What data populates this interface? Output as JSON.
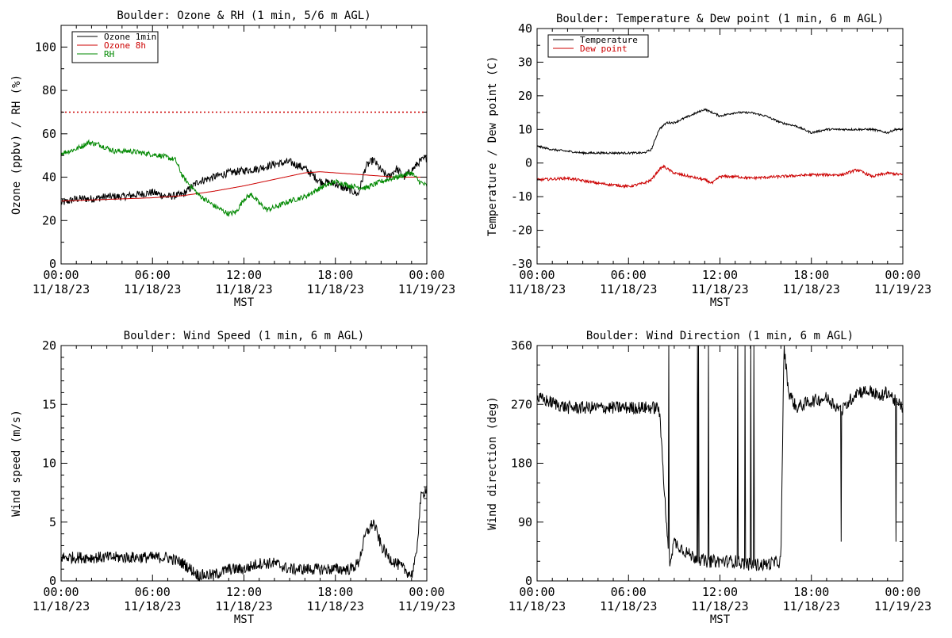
{
  "x_axis": {
    "times": [
      "00:00",
      "06:00",
      "12:00",
      "18:00",
      "00:00"
    ],
    "dates": [
      "11/18/23",
      "11/18/23",
      "11/18/23",
      "11/18/23",
      "11/19/23"
    ],
    "label": "MST",
    "range_hours": [
      0,
      24
    ]
  },
  "chart_data": [
    {
      "id": "ozone_rh",
      "type": "line",
      "title": "Boulder: Ozone & RH (1 min, 5/6 m AGL)",
      "ylabel": "Ozone (ppbv) / RH (%)",
      "ylim": [
        0,
        110
      ],
      "yticks": [
        0,
        20,
        40,
        60,
        80,
        100
      ],
      "legend": "top-left",
      "reference_line": {
        "y": 70,
        "color": "#cc0000",
        "style": "dotted"
      },
      "series": [
        {
          "name": "Ozone 1min",
          "color": "#000000",
          "noise": 1.8,
          "x": [
            0,
            1,
            2,
            3,
            4,
            5,
            6,
            7,
            8,
            9,
            10,
            11,
            12,
            13,
            14,
            15,
            16,
            17,
            18,
            18.5,
            19,
            19.5,
            20,
            20.5,
            21,
            21.5,
            22,
            22.5,
            23,
            23.5,
            24
          ],
          "y": [
            28,
            30,
            30,
            31,
            31,
            32,
            33,
            31,
            32,
            38,
            40,
            42,
            43,
            44,
            46,
            47,
            44,
            38,
            37,
            35,
            34,
            32,
            45,
            48,
            43,
            40,
            44,
            40,
            43,
            47,
            49
          ]
        },
        {
          "name": "Ozone 8h",
          "color": "#cc0000",
          "noise": 0,
          "x": [
            0,
            2,
            4,
            6,
            8,
            10,
            12,
            14,
            16,
            17,
            18,
            20,
            22,
            24
          ],
          "y": [
            29,
            29.5,
            30,
            30.5,
            31.5,
            33.5,
            36,
            39,
            42,
            42.5,
            42,
            41,
            40,
            40
          ]
        },
        {
          "name": "RH",
          "color": "#008800",
          "noise": 1.2,
          "x": [
            0,
            1,
            1.8,
            2.5,
            3.5,
            4.5,
            5.5,
            6.5,
            7.5,
            8,
            9,
            10,
            11,
            11.5,
            12,
            12.5,
            13,
            13.5,
            14,
            15,
            16,
            17,
            18,
            19,
            20,
            21,
            22,
            23,
            23.5,
            24
          ],
          "y": [
            51,
            53,
            56,
            55,
            52,
            52,
            51,
            50,
            48,
            40,
            32,
            27,
            23,
            24,
            30,
            32,
            28,
            25,
            26,
            29,
            31,
            35,
            38,
            36,
            35,
            38,
            40,
            42,
            38,
            36
          ]
        }
      ]
    },
    {
      "id": "temp_dew",
      "type": "line",
      "title": "Boulder: Temperature & Dew point (1 min, 6 m AGL)",
      "ylabel": "Temperature / Dew point (C)",
      "ylim": [
        -30,
        40
      ],
      "yticks": [
        -30,
        -20,
        -10,
        0,
        10,
        20,
        30,
        40
      ],
      "legend": "top-left",
      "series": [
        {
          "name": "Temperature",
          "color": "#000000",
          "noise": 0.3,
          "x": [
            0,
            1,
            2,
            3,
            4,
            5,
            6,
            7,
            7.5,
            8,
            8.5,
            9,
            10,
            11,
            12,
            13,
            14,
            15,
            16,
            17,
            18,
            19,
            20,
            21,
            22,
            23,
            23.5,
            24
          ],
          "y": [
            5,
            4,
            3.5,
            3,
            3,
            3,
            3,
            3,
            4,
            10,
            12,
            12,
            14,
            16,
            14,
            15,
            15,
            14,
            12,
            11,
            9,
            10,
            10,
            10,
            10,
            9,
            10,
            10
          ]
        },
        {
          "name": "Dew point",
          "color": "#cc0000",
          "noise": 0.4,
          "x": [
            0,
            2,
            4,
            6,
            7,
            7.5,
            8,
            8.3,
            9,
            10,
            11,
            11.5,
            12,
            13,
            14,
            16,
            18,
            20,
            21,
            21.5,
            22,
            23,
            24
          ],
          "y": [
            -5,
            -4.5,
            -6,
            -7,
            -6,
            -5,
            -2,
            -1,
            -3,
            -4,
            -5,
            -6,
            -4,
            -4,
            -4.5,
            -4,
            -3.5,
            -3.5,
            -2,
            -3,
            -4,
            -3,
            -3.5
          ]
        }
      ]
    },
    {
      "id": "wind_speed",
      "type": "line",
      "title": "Boulder: Wind Speed (1 min, 6 m AGL)",
      "ylabel": "Wind speed (m/s)",
      "ylim": [
        0,
        20
      ],
      "yticks": [
        0,
        5,
        10,
        15,
        20
      ],
      "series": [
        {
          "name": "",
          "color": "#000000",
          "noise": 0.5,
          "x": [
            0,
            2,
            4,
            6,
            7,
            8,
            9,
            10,
            11,
            12,
            13,
            14,
            15,
            16,
            17,
            18,
            19,
            19.5,
            20,
            20.5,
            21,
            21.5,
            22,
            22.5,
            23,
            23.3,
            23.6,
            24
          ],
          "y": [
            2,
            2,
            2,
            2,
            2,
            1.5,
            0.5,
            0.5,
            1,
            1,
            1.5,
            1.5,
            1,
            1,
            1,
            1,
            1,
            1.5,
            4,
            5,
            3,
            2,
            1.5,
            1,
            0.5,
            2,
            7,
            8
          ]
        }
      ]
    },
    {
      "id": "wind_dir",
      "type": "line",
      "title": "Boulder: Wind Direction (1 min, 6 m AGL)",
      "ylabel": "Wind direction (deg)",
      "ylim": [
        0,
        360
      ],
      "yticks": [
        0,
        90,
        180,
        270,
        360
      ],
      "series": [
        {
          "name": "",
          "color": "#000000",
          "noise": 10,
          "x": [
            0,
            2,
            4,
            6,
            7,
            8,
            8.2,
            8.5,
            8.7,
            9,
            10,
            11,
            12,
            13,
            14,
            15,
            16,
            16.2,
            16.5,
            17,
            18,
            19,
            20,
            21,
            22,
            22.5,
            23,
            23.5,
            24
          ],
          "y": [
            280,
            265,
            265,
            265,
            265,
            265,
            200,
            80,
            30,
            60,
            40,
            30,
            30,
            30,
            25,
            25,
            30,
            360,
            290,
            265,
            275,
            280,
            260,
            290,
            290,
            280,
            290,
            275,
            265
          ]
        }
      ]
    }
  ]
}
